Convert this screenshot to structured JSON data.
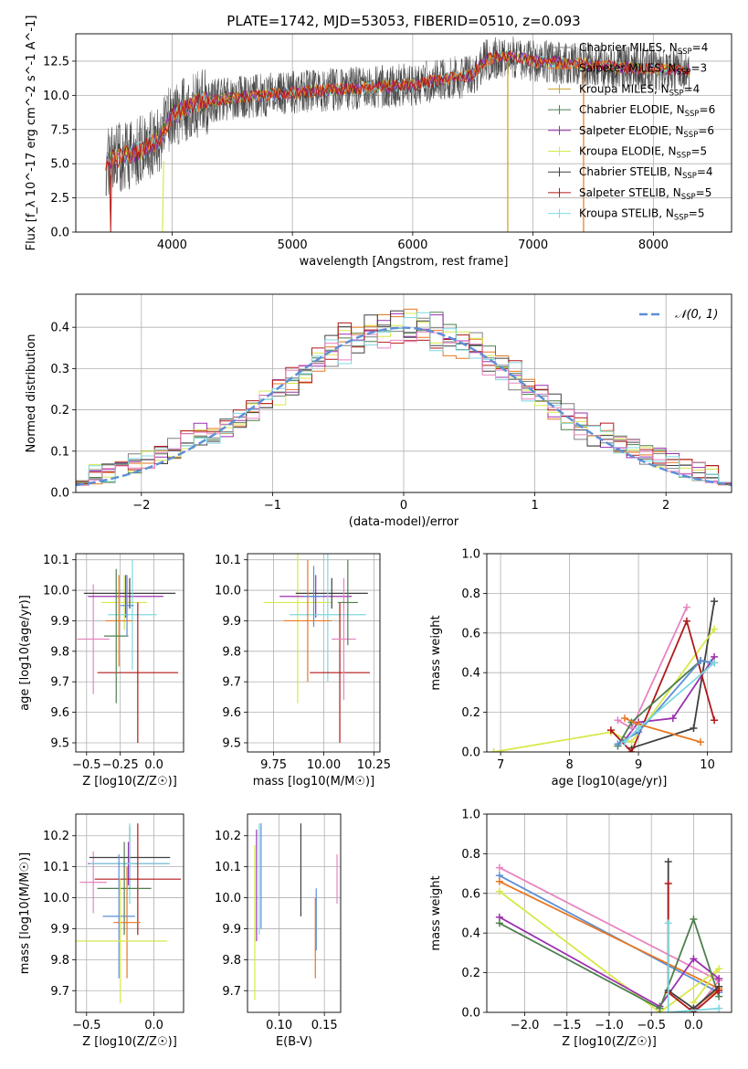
{
  "figure": {
    "title": "PLATE=1742, MJD=53053, FIBERID=0510, z=0.093"
  },
  "legend_entries": [
    {
      "label": "Chabrier MILES, N",
      "sub": "SSP",
      "n": "=4",
      "color": "#7f7f7f"
    },
    {
      "label": "Salpeter MILES, N",
      "sub": "SSP",
      "n": "=3",
      "color": "#e87722"
    },
    {
      "label": "Kroupa MILES, N",
      "sub": "SSP",
      "n": "=4",
      "color": "#c9a227"
    },
    {
      "label": "Chabrier ELODIE, N",
      "sub": "SSP",
      "n": "=6",
      "color": "#4f7f4f"
    },
    {
      "label": "Salpeter ELODIE, N",
      "sub": "SSP",
      "n": "=6",
      "color": "#9b30b0"
    },
    {
      "label": "Kroupa ELODIE, N",
      "sub": "SSP",
      "n": "=5",
      "color": "#d8e84a"
    },
    {
      "label": "Chabrier STELIB, N",
      "sub": "SSP",
      "n": "=4",
      "color": "#404040"
    },
    {
      "label": "Salpeter STELIB, N",
      "sub": "SSP",
      "n": "=5",
      "color": "#b01818"
    },
    {
      "label": "Kroupa STELIB, N",
      "sub": "SSP",
      "n": "=5",
      "color": "#7fd8e0"
    }
  ],
  "series_colors": [
    "#7f7f7f",
    "#e87722",
    "#c9a227",
    "#4f7f4f",
    "#9b30b0",
    "#d8e84a",
    "#404040",
    "#b01818",
    "#7fd8e0",
    "#e884c0",
    "#5b8fd8"
  ],
  "chart_data": [
    {
      "id": "spectrum",
      "type": "line",
      "xlabel": "wavelength [Angstrom, rest frame]",
      "ylabel": "Flux [f_λ 10^-17 erg cm^-2 s^-1 A^-1]",
      "xlim": [
        3200,
        8650
      ],
      "ylim": [
        0,
        14.5
      ],
      "xticks": [
        4000,
        5000,
        6000,
        7000,
        8000
      ],
      "yticks": [
        0.0,
        2.5,
        5.0,
        7.5,
        10.0,
        12.5
      ],
      "ytick_labels": [
        "0.0",
        "2.5",
        "5.0",
        "7.5",
        "10.0",
        "12.5"
      ],
      "continuum": [
        [
          3450,
          5.2
        ],
        [
          3700,
          5.8
        ],
        [
          3900,
          6.8
        ],
        [
          4000,
          8.6
        ],
        [
          4200,
          9.4
        ],
        [
          4500,
          9.8
        ],
        [
          5000,
          10.2
        ],
        [
          5500,
          10.5
        ],
        [
          6000,
          10.8
        ],
        [
          6500,
          11.5
        ],
        [
          6600,
          12.6
        ],
        [
          6800,
          12.9
        ],
        [
          7000,
          12.5
        ],
        [
          7400,
          12.3
        ],
        [
          7800,
          12.0
        ],
        [
          8300,
          11.8
        ]
      ],
      "legend_loc": "upper right"
    },
    {
      "id": "residuals",
      "type": "step",
      "xlabel": "(data-model)/error",
      "ylabel": "Normed distribution",
      "xlim": [
        -2.5,
        2.5
      ],
      "ylim": [
        0,
        0.48
      ],
      "xticks": [
        -2,
        -1,
        0,
        1,
        2
      ],
      "yticks": [
        0.0,
        0.1,
        0.2,
        0.3,
        0.4
      ],
      "ytick_labels": [
        "0.0",
        "0.1",
        "0.2",
        "0.3",
        "0.4"
      ],
      "legend": "𝒩(0, 1)",
      "gaussian": {
        "mean": 0,
        "sigma": 1
      },
      "bin_width": 0.1
    },
    {
      "id": "age-vs-Z",
      "type": "errorbar",
      "xlabel": "Z [log10(Z/Z☉)]",
      "ylabel": "age  [log10(age/yr)]",
      "xlim": [
        -0.58,
        0.22
      ],
      "ylim": [
        9.47,
        10.12
      ],
      "xticks": [
        -0.5,
        -0.25,
        0.0
      ],
      "xtick_labels": [
        "−0.5",
        "−0.25",
        "0.0"
      ],
      "yticks": [
        9.5,
        9.6,
        9.7,
        9.8,
        9.9,
        10.0,
        10.1
      ],
      "points": [
        {
          "x": -0.45,
          "xerr": 0.12,
          "y": 9.84,
          "yerr": 0.18,
          "c": 9
        },
        {
          "x": -0.22,
          "xerr": 0.17,
          "y": 9.96,
          "yerr": 0.09,
          "c": 5
        },
        {
          "x": -0.21,
          "xerr": 0.28,
          "y": 9.98,
          "yerr": 0.07,
          "c": 4
        },
        {
          "x": -0.18,
          "xerr": 0.34,
          "y": 9.99,
          "yerr": 0.05,
          "c": 6
        },
        {
          "x": -0.16,
          "xerr": 0.18,
          "y": 9.92,
          "yerr": 0.18,
          "c": 8
        },
        {
          "x": -0.26,
          "xerr": 0.1,
          "y": 9.9,
          "yerr": 0.15,
          "c": 1
        },
        {
          "x": -0.12,
          "xerr": 0.3,
          "y": 9.73,
          "yerr": 0.23,
          "c": 7
        },
        {
          "x": -0.28,
          "xerr": 0.09,
          "y": 9.85,
          "yerr": 0.22,
          "c": 3
        },
        {
          "x": -0.2,
          "xerr": 0.05,
          "y": 9.95,
          "yerr": 0.1,
          "c": 10
        }
      ]
    },
    {
      "id": "age-vs-mass",
      "type": "errorbar",
      "xlabel": "mass [log10(M/M☉)]",
      "xlim": [
        9.62,
        10.28
      ],
      "ylim": [
        9.47,
        10.12
      ],
      "xticks": [
        9.75,
        10.0,
        10.25
      ],
      "xtick_labels": [
        "9.75",
        "10.00",
        "10.25"
      ],
      "yticks": [
        9.5,
        9.6,
        9.7,
        9.8,
        9.9,
        10.0,
        10.1
      ],
      "points": [
        {
          "x": 9.87,
          "xerr": 0.17,
          "y": 9.96,
          "yerr": 0.33,
          "c": 5
        },
        {
          "x": 9.96,
          "xerr": 0.18,
          "y": 9.98,
          "yerr": 0.07,
          "c": 4
        },
        {
          "x": 10.04,
          "xerr": 0.18,
          "y": 9.99,
          "yerr": 0.05,
          "c": 6
        },
        {
          "x": 10.02,
          "xerr": 0.19,
          "y": 9.92,
          "yerr": 0.22,
          "c": 8
        },
        {
          "x": 9.92,
          "xerr": 0.12,
          "y": 9.9,
          "yerr": 0.2,
          "c": 1
        },
        {
          "x": 10.08,
          "xerr": 0.15,
          "y": 9.73,
          "yerr": 0.23,
          "c": 7
        },
        {
          "x": 10.1,
          "xerr": 0.06,
          "y": 9.84,
          "yerr": 0.2,
          "c": 9
        },
        {
          "x": 10.12,
          "xerr": 0.05,
          "y": 9.96,
          "yerr": 0.14,
          "c": 3
        },
        {
          "x": 9.95,
          "xerr": 0.05,
          "y": 9.98,
          "yerr": 0.1,
          "c": 10
        }
      ]
    },
    {
      "id": "massweight-vs-age",
      "type": "line",
      "xlabel": "age  [log10(age/yr)]",
      "ylabel": "mass weight",
      "xlim": [
        6.8,
        10.35
      ],
      "ylim": [
        0,
        1.0
      ],
      "xticks": [
        7,
        8,
        9,
        10
      ],
      "yticks": [
        0.0,
        0.2,
        0.4,
        0.6,
        0.8,
        1.0
      ],
      "ytick_labels": [
        "0.0",
        "0.2",
        "0.4",
        "0.6",
        "0.8",
        "1.0"
      ],
      "series": [
        {
          "c": 6,
          "x": [
            8.9,
            9.8,
            10.1
          ],
          "y": [
            0.02,
            0.12,
            0.76
          ]
        },
        {
          "c": 4,
          "x": [
            8.8,
            9.0,
            9.5,
            10.1
          ],
          "y": [
            0.06,
            0.15,
            0.17,
            0.48
          ]
        },
        {
          "c": 9,
          "x": [
            8.7,
            8.9,
            9.7
          ],
          "y": [
            0.16,
            0.12,
            0.73
          ]
        },
        {
          "c": 5,
          "x": [
            6.9,
            8.6,
            8.9,
            10.1
          ],
          "y": [
            0.0,
            0.1,
            0.05,
            0.62
          ]
        },
        {
          "c": 7,
          "x": [
            8.6,
            8.9,
            9.7,
            10.1
          ],
          "y": [
            0.11,
            0.0,
            0.66,
            0.16
          ]
        },
        {
          "c": 3,
          "x": [
            8.7,
            8.9,
            9.9,
            10.1
          ],
          "y": [
            0.03,
            0.15,
            0.46,
            0.45
          ]
        },
        {
          "c": 10,
          "x": [
            8.7,
            9.0,
            9.9,
            10.05
          ],
          "y": [
            0.04,
            0.1,
            0.46,
            0.45
          ]
        },
        {
          "c": 1,
          "x": [
            8.8,
            9.0,
            9.9
          ],
          "y": [
            0.17,
            0.14,
            0.05
          ]
        },
        {
          "c": 8,
          "x": [
            8.8,
            9.0,
            10.1
          ],
          "y": [
            0.05,
            0.12,
            0.45
          ]
        }
      ]
    },
    {
      "id": "mass-vs-Z",
      "type": "errorbar",
      "xlabel": "Z [log10(Z/Z☉)]",
      "ylabel": "mass [log10(M/M☉)]",
      "xlim": [
        -0.58,
        0.22
      ],
      "ylim": [
        9.63,
        10.27
      ],
      "xticks": [
        -0.5,
        0.0
      ],
      "xtick_labels": [
        "−0.5",
        "0.0"
      ],
      "yticks": [
        9.7,
        9.8,
        9.9,
        10.0,
        10.1,
        10.2
      ],
      "points": [
        {
          "x": -0.45,
          "xerr": 0.1,
          "y": 10.05,
          "yerr": 0.1,
          "c": 9
        },
        {
          "x": -0.19,
          "xerr": 0.3,
          "y": 10.11,
          "yerr": 0.07,
          "c": 4
        },
        {
          "x": -0.18,
          "xerr": 0.3,
          "y": 10.13,
          "yerr": 0.1,
          "c": 6
        },
        {
          "x": -0.18,
          "xerr": 0.3,
          "y": 10.11,
          "yerr": 0.13,
          "c": 8
        },
        {
          "x": -0.12,
          "xerr": 0.32,
          "y": 10.06,
          "yerr": 0.18,
          "c": 7
        },
        {
          "x": -0.22,
          "xerr": 0.2,
          "y": 10.03,
          "yerr": 0.15,
          "c": 3
        },
        {
          "x": -0.26,
          "xerr": 0.12,
          "y": 9.94,
          "yerr": 0.2,
          "c": 10
        },
        {
          "x": -0.2,
          "xerr": 0.1,
          "y": 9.92,
          "yerr": 0.18,
          "c": 1
        },
        {
          "x": -0.25,
          "xerr": 0.35,
          "y": 9.86,
          "yerr": 0.2,
          "c": 5
        }
      ]
    },
    {
      "id": "mass-vs-ebv",
      "type": "errorbar",
      "xlabel": "E(B-V)",
      "xlim": [
        0.065,
        0.168
      ],
      "ylim": [
        9.63,
        10.27
      ],
      "xticks": [
        0.1,
        0.15
      ],
      "xtick_labels": [
        "0.10",
        "0.15"
      ],
      "yticks": [
        9.7,
        9.8,
        9.9,
        10.0,
        10.1,
        10.2
      ],
      "points": [
        {
          "x": 0.073,
          "y": 9.92,
          "yerr": 0.25,
          "c": 5
        },
        {
          "x": 0.075,
          "y": 10.04,
          "yerr": 0.18,
          "c": 4
        },
        {
          "x": 0.078,
          "y": 10.06,
          "yerr": 0.18,
          "c": 8
        },
        {
          "x": 0.08,
          "y": 10.07,
          "yerr": 0.17,
          "c": 10
        },
        {
          "x": 0.124,
          "y": 10.09,
          "yerr": 0.15,
          "c": 6
        },
        {
          "x": 0.14,
          "y": 9.87,
          "yerr": 0.13,
          "c": 1
        },
        {
          "x": 0.141,
          "y": 9.93,
          "yerr": 0.1,
          "c": 10
        },
        {
          "x": 0.164,
          "y": 10.06,
          "yerr": 0.08,
          "c": 9
        }
      ]
    },
    {
      "id": "massweight-vs-Z",
      "type": "line",
      "xlabel": "Z [log10(Z/Z☉)]",
      "ylabel": "mass weight",
      "xlim": [
        -2.45,
        0.45
      ],
      "ylim": [
        0,
        1.0
      ],
      "xticks": [
        -2.0,
        -1.5,
        -1.0,
        -0.5,
        0.0
      ],
      "xtick_labels": [
        "−2.0",
        "−1.5",
        "−1.0",
        "−0.5",
        "0.0"
      ],
      "yticks": [
        0.0,
        0.2,
        0.4,
        0.6,
        0.8,
        1.0
      ],
      "ytick_labels": [
        "0.0",
        "0.2",
        "0.4",
        "0.6",
        "0.8",
        "1.0"
      ],
      "series": [
        {
          "c": 9,
          "x": [
            -2.3,
            0.3,
            0.0
          ],
          "y": [
            0.73,
            0.16,
            0.0
          ]
        },
        {
          "c": 10,
          "x": [
            -2.3,
            0.3
          ],
          "y": [
            0.69,
            0.1
          ]
        },
        {
          "c": 1,
          "x": [
            -2.3,
            0.3,
            0.0
          ],
          "y": [
            0.66,
            0.12,
            0.02
          ]
        },
        {
          "c": 5,
          "x": [
            -2.3,
            -0.4,
            0.3,
            0.0
          ],
          "y": [
            0.61,
            0.0,
            0.22,
            0.05
          ]
        },
        {
          "c": 4,
          "x": [
            -2.3,
            -0.4,
            0.0,
            0.3
          ],
          "y": [
            0.48,
            0.03,
            0.27,
            0.17
          ]
        },
        {
          "c": 3,
          "x": [
            -2.3,
            -0.4,
            0.0,
            0.3
          ],
          "y": [
            0.45,
            0.02,
            0.47,
            0.08
          ]
        },
        {
          "c": 6,
          "x": [
            -0.3,
            -0.3,
            0.0,
            0.3
          ],
          "y": [
            0.76,
            0.11,
            0.02,
            0.13
          ]
        },
        {
          "c": 7,
          "x": [
            -0.3,
            -0.3,
            0.0,
            0.3
          ],
          "y": [
            0.65,
            0.1,
            0.0,
            0.11
          ]
        },
        {
          "c": 8,
          "x": [
            -0.3,
            -0.3,
            0.3
          ],
          "y": [
            0.45,
            0.0,
            0.02
          ]
        }
      ]
    }
  ]
}
